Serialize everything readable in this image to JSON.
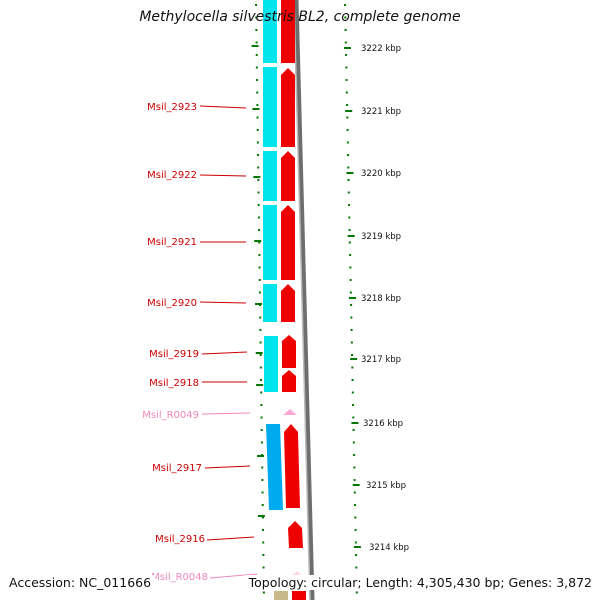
{
  "title": "Methylocella silvestris BL2, complete genome",
  "accession": "Accession: NC_011666",
  "topology": "Topology: circular; Length: 4,305,430 bp; Genes: 3,872",
  "colors": {
    "gene_label": "#cc0000",
    "rna_label": "#ee88bb",
    "cds_forward": "#ee0000",
    "cds_cyan": "#00e0e8",
    "cds_blue": "#00aaee",
    "rna_pink": "#ffbbdd",
    "tick": "#007700",
    "backbone": "#888888"
  },
  "scale_labels": [
    "3222 kbp",
    "3221 kbp",
    "3220 kbp",
    "3219 kbp",
    "3218 kbp",
    "3217 kbp",
    "3216 kbp",
    "3215 kbp",
    "3214 kbp"
  ],
  "gene_labels": [
    {
      "text": "Msil_2923",
      "type": "gene"
    },
    {
      "text": "Msil_2922",
      "type": "gene"
    },
    {
      "text": "Msil_2921",
      "type": "gene"
    },
    {
      "text": "Msil_2920",
      "type": "gene"
    },
    {
      "text": "Msil_2919",
      "type": "gene"
    },
    {
      "text": "Msil_2918",
      "type": "gene"
    },
    {
      "text": "Msil_R0049",
      "type": "rna"
    },
    {
      "text": "Msil_2917",
      "type": "gene"
    },
    {
      "text": "Msil_2916",
      "type": "gene"
    },
    {
      "text": "Msil_R0048",
      "type": "rna"
    }
  ]
}
